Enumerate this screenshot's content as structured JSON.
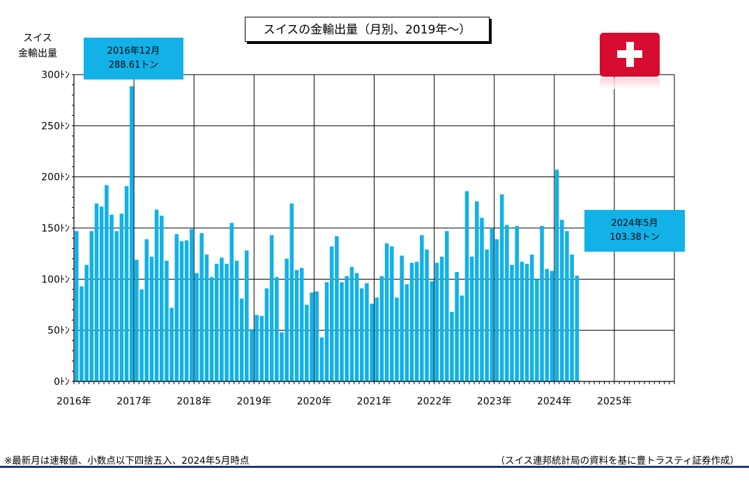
{
  "chart_data": {
    "type": "bar",
    "title": "スイスの金輸出量（月別、2019年～）",
    "ylabel": "スイス\n金輸出量",
    "ylabel_lines": [
      "スイス",
      "金輸出量"
    ],
    "ylim": [
      0,
      300
    ],
    "yticks": [
      0,
      50,
      100,
      150,
      200,
      250,
      300
    ],
    "ytick_labels": [
      "0ﾄﾝ",
      "50ﾄﾝ",
      "100ﾄﾝ",
      "150ﾄﾝ",
      "200ﾄﾝ",
      "250ﾄﾝ",
      "300ﾄﾝ"
    ],
    "x_start": "2016-01",
    "x_end": "2025-12",
    "xtick_labels": [
      "2016年",
      "2017年",
      "2018年",
      "2019年",
      "2020年",
      "2021年",
      "2022年",
      "2023年",
      "2024年",
      "2025年"
    ],
    "grid": true,
    "bar_color": "#12b1e8",
    "series": [
      {
        "values": [
          147,
          93,
          114,
          147,
          174,
          171,
          192,
          163,
          147,
          164,
          191,
          288.61,
          119,
          90,
          139,
          122,
          168,
          162,
          118,
          72,
          144,
          137,
          138,
          149,
          106,
          145,
          124,
          102,
          115,
          121,
          115,
          155,
          118,
          81,
          128,
          51,
          65,
          64,
          91,
          143,
          102,
          48,
          120,
          174,
          109,
          111,
          75,
          87,
          88,
          43,
          97,
          132,
          142,
          97,
          103,
          112,
          106,
          91,
          96,
          76,
          82,
          103,
          135,
          132,
          82,
          123,
          95,
          116,
          117,
          143,
          129,
          98,
          116,
          122,
          147,
          68,
          107,
          84,
          186,
          122,
          176,
          160,
          129,
          150,
          139,
          183,
          153,
          114,
          152,
          117,
          115,
          124,
          100,
          152,
          110,
          108,
          207,
          158,
          147,
          124,
          103.38
        ]
      }
    ]
  },
  "callouts": {
    "high": {
      "line1": "2016年12月",
      "line2": "288.61トン"
    },
    "latest": {
      "line1": "2024年5月",
      "line2": "103.38トン"
    }
  },
  "flag": {
    "color": "#d70b30"
  },
  "footnote": "※最新月は速報値、小数点以下四捨五入、2024年5月時点",
  "source": "（スイス連邦統計局の資料を基に豊トラスティ証券作成）"
}
